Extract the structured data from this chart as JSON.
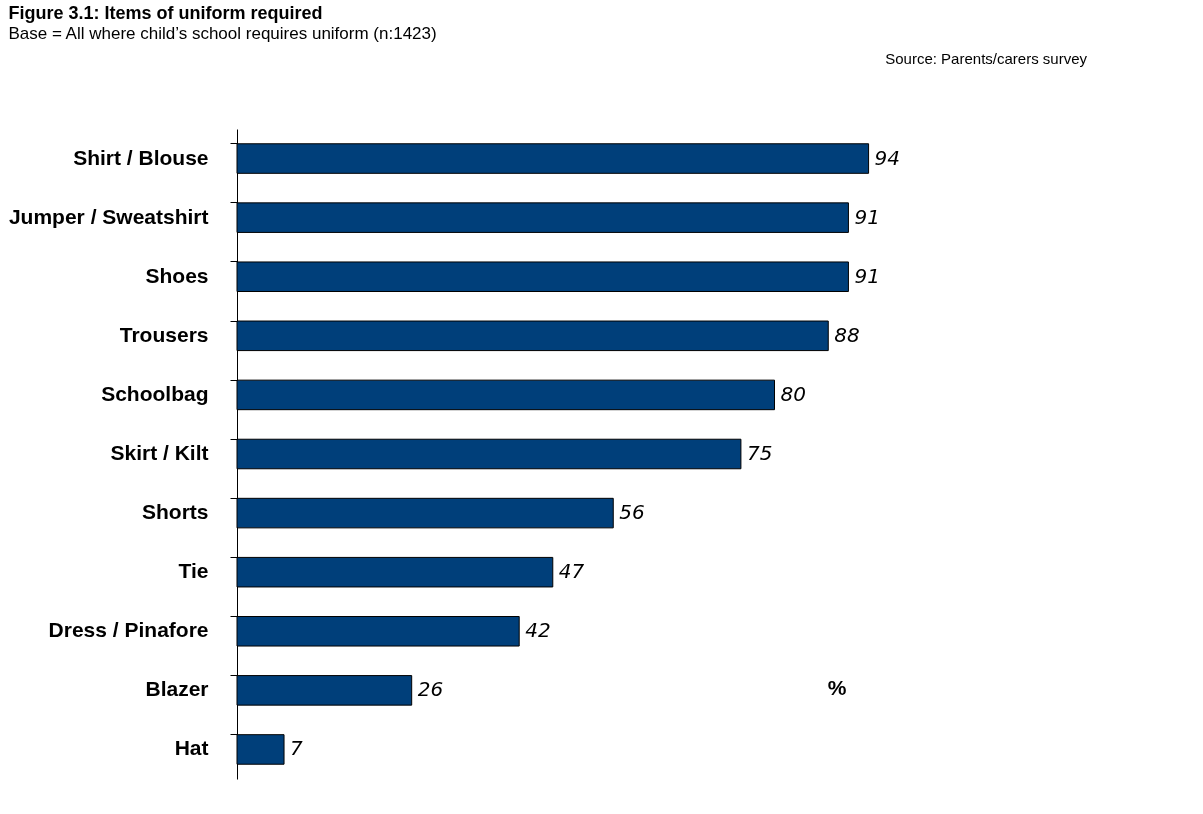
{
  "chart_data": {
    "type": "bar",
    "orientation": "horizontal",
    "title": "Figure 3.1: Items of uniform required",
    "subtitle": "Base = All where child’s school requires uniform (n:1423)",
    "categories": [
      "Shirt / Blouse",
      "Jumper / Sweatshirt",
      "Shoes",
      "Trousers",
      "Schoolbag",
      "Skirt / Kilt",
      "Shorts",
      "Tie",
      "Dress / Pinafore",
      "Blazer",
      "Hat"
    ],
    "values": [
      94,
      91,
      91,
      88,
      80,
      75,
      56,
      47,
      42,
      26,
      7
    ],
    "color": "#003f7a",
    "data_labels": true,
    "annotations": [
      "Source: Parents/carers survey",
      "%"
    ],
    "grid": false
  }
}
